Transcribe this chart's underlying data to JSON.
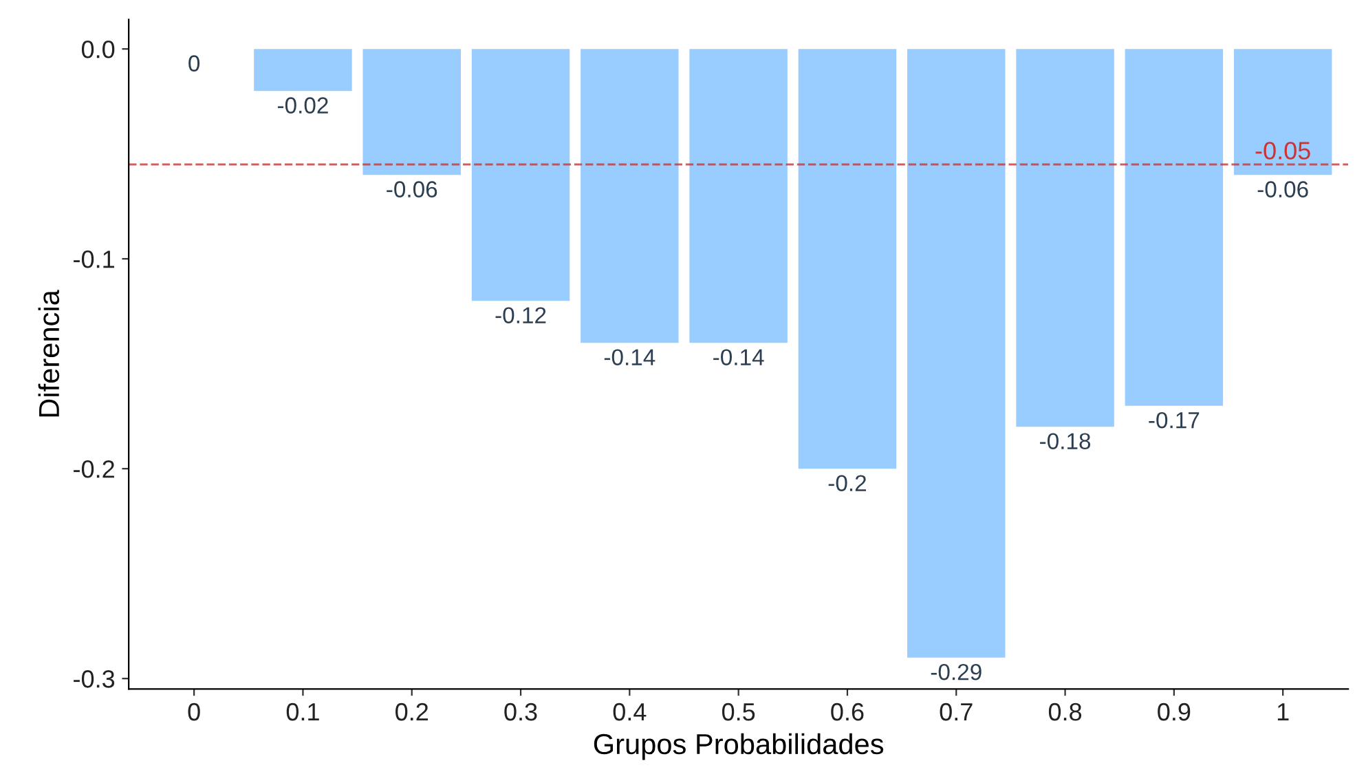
{
  "chart_data": {
    "type": "bar",
    "xlabel": "Grupos Probabilidades",
    "ylabel": "Diferencia",
    "categories": [
      "0",
      "0.1",
      "0.2",
      "0.3",
      "0.4",
      "0.5",
      "0.6",
      "0.7",
      "0.8",
      "0.9",
      "1"
    ],
    "values": [
      0,
      -0.02,
      -0.06,
      -0.12,
      -0.14,
      -0.14,
      -0.2,
      -0.29,
      -0.18,
      -0.17,
      -0.06
    ],
    "color": "#99ccff",
    "data_labels": true,
    "ylim": [
      -0.305,
      0.014
    ],
    "yticks": [
      {
        "value": 0,
        "label": "0.0"
      },
      {
        "value": -0.1,
        "label": "-0.1"
      },
      {
        "value": -0.2,
        "label": "-0.2"
      },
      {
        "value": -0.3,
        "label": "-0.3"
      }
    ],
    "ref_lines": [
      {
        "axis": "y",
        "value": -0.055,
        "label": "-0.05",
        "color": "#cc3333",
        "line_style": "dashed"
      }
    ],
    "grid": false,
    "legend": false
  }
}
